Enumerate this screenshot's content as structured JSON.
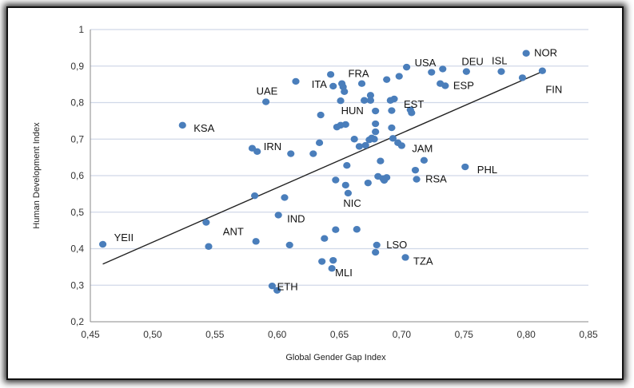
{
  "chart_data": {
    "type": "scatter",
    "title": "",
    "xlabel": "Global Gender Gap Index",
    "ylabel": "Human Development Index",
    "xlim": [
      0.45,
      0.85
    ],
    "ylim": [
      0.2,
      1.0
    ],
    "x_ticks": [
      0.45,
      0.5,
      0.55,
      0.6,
      0.65,
      0.7,
      0.75,
      0.8,
      0.85
    ],
    "x_tick_labels": [
      "0,45",
      "0,50",
      "0,55",
      "0,60",
      "0,65",
      "0,70",
      "0,75",
      "0,80",
      "0,85"
    ],
    "y_ticks": [
      0.2,
      0.3,
      0.4,
      0.5,
      0.6,
      0.7,
      0.8,
      0.9,
      1.0
    ],
    "y_tick_labels": [
      "0,2",
      "0,3",
      "0,4",
      "0,5",
      "0,6",
      "0,7",
      "0,8",
      "0,9",
      "1"
    ],
    "grid": "horizontal",
    "point_color": "#4a7ebb",
    "trendline": {
      "x": [
        0.46,
        0.815
      ],
      "y": [
        0.358,
        0.888
      ],
      "color": "#222222"
    },
    "points": [
      {
        "x": 0.46,
        "y": 0.412,
        "label": "YEII"
      },
      {
        "x": 0.524,
        "y": 0.738,
        "label": "KSA"
      },
      {
        "x": 0.543,
        "y": 0.472,
        "label": ""
      },
      {
        "x": 0.545,
        "y": 0.406,
        "label": ""
      },
      {
        "x": 0.58,
        "y": 0.675,
        "label": ""
      },
      {
        "x": 0.582,
        "y": 0.545,
        "label": ""
      },
      {
        "x": 0.583,
        "y": 0.42,
        "label": ""
      },
      {
        "x": 0.584,
        "y": 0.666,
        "label": "IRN"
      },
      {
        "x": 0.591,
        "y": 0.802,
        "label": "UAE"
      },
      {
        "x": 0.596,
        "y": 0.298,
        "label": ""
      },
      {
        "x": 0.6,
        "y": 0.286,
        "label": "ETH"
      },
      {
        "x": 0.601,
        "y": 0.492,
        "label": "IND"
      },
      {
        "x": 0.606,
        "y": 0.54,
        "label": ""
      },
      {
        "x": 0.61,
        "y": 0.41,
        "label": ""
      },
      {
        "x": 0.611,
        "y": 0.66,
        "label": ""
      },
      {
        "x": 0.615,
        "y": 0.858,
        "label": ""
      },
      {
        "x": 0.629,
        "y": 0.66,
        "label": ""
      },
      {
        "x": 0.634,
        "y": 0.69,
        "label": ""
      },
      {
        "x": 0.635,
        "y": 0.766,
        "label": ""
      },
      {
        "x": 0.636,
        "y": 0.365,
        "label": ""
      },
      {
        "x": 0.638,
        "y": 0.428,
        "label": "ANT"
      },
      {
        "x": 0.643,
        "y": 0.877,
        "label": ""
      },
      {
        "x": 0.644,
        "y": 0.346,
        "label": "MLI"
      },
      {
        "x": 0.645,
        "y": 0.368,
        "label": ""
      },
      {
        "x": 0.645,
        "y": 0.845,
        "label": "ITA"
      },
      {
        "x": 0.647,
        "y": 0.588,
        "label": ""
      },
      {
        "x": 0.647,
        "y": 0.452,
        "label": ""
      },
      {
        "x": 0.648,
        "y": 0.733,
        "label": ""
      },
      {
        "x": 0.651,
        "y": 0.805,
        "label": ""
      },
      {
        "x": 0.651,
        "y": 0.738,
        "label": ""
      },
      {
        "x": 0.652,
        "y": 0.852,
        "label": ""
      },
      {
        "x": 0.653,
        "y": 0.843,
        "label": ""
      },
      {
        "x": 0.654,
        "y": 0.83,
        "label": ""
      },
      {
        "x": 0.655,
        "y": 0.74,
        "label": ""
      },
      {
        "x": 0.655,
        "y": 0.574,
        "label": ""
      },
      {
        "x": 0.656,
        "y": 0.628,
        "label": ""
      },
      {
        "x": 0.657,
        "y": 0.552,
        "label": "NIC"
      },
      {
        "x": 0.662,
        "y": 0.7,
        "label": ""
      },
      {
        "x": 0.664,
        "y": 0.453,
        "label": ""
      },
      {
        "x": 0.666,
        "y": 0.68,
        "label": ""
      },
      {
        "x": 0.668,
        "y": 0.852,
        "label": "FRA"
      },
      {
        "x": 0.67,
        "y": 0.806,
        "label": ""
      },
      {
        "x": 0.671,
        "y": 0.683,
        "label": ""
      },
      {
        "x": 0.673,
        "y": 0.58,
        "label": ""
      },
      {
        "x": 0.674,
        "y": 0.698,
        "label": ""
      },
      {
        "x": 0.675,
        "y": 0.82,
        "label": ""
      },
      {
        "x": 0.675,
        "y": 0.806,
        "label": ""
      },
      {
        "x": 0.676,
        "y": 0.703,
        "label": ""
      },
      {
        "x": 0.678,
        "y": 0.7,
        "label": ""
      },
      {
        "x": 0.679,
        "y": 0.742,
        "label": ""
      },
      {
        "x": 0.679,
        "y": 0.72,
        "label": ""
      },
      {
        "x": 0.679,
        "y": 0.777,
        "label": "HUN"
      },
      {
        "x": 0.679,
        "y": 0.39,
        "label": ""
      },
      {
        "x": 0.68,
        "y": 0.41,
        "label": "LSO"
      },
      {
        "x": 0.681,
        "y": 0.598,
        "label": ""
      },
      {
        "x": 0.683,
        "y": 0.64,
        "label": ""
      },
      {
        "x": 0.685,
        "y": 0.592,
        "label": ""
      },
      {
        "x": 0.686,
        "y": 0.587,
        "label": ""
      },
      {
        "x": 0.688,
        "y": 0.595,
        "label": ""
      },
      {
        "x": 0.688,
        "y": 0.863,
        "label": ""
      },
      {
        "x": 0.691,
        "y": 0.806,
        "label": ""
      },
      {
        "x": 0.692,
        "y": 0.778,
        "label": ""
      },
      {
        "x": 0.692,
        "y": 0.731,
        "label": ""
      },
      {
        "x": 0.693,
        "y": 0.702,
        "label": ""
      },
      {
        "x": 0.694,
        "y": 0.81,
        "label": "EST"
      },
      {
        "x": 0.697,
        "y": 0.69,
        "label": ""
      },
      {
        "x": 0.698,
        "y": 0.872,
        "label": ""
      },
      {
        "x": 0.7,
        "y": 0.682,
        "label": "JAM"
      },
      {
        "x": 0.703,
        "y": 0.376,
        "label": "TZA"
      },
      {
        "x": 0.704,
        "y": 0.897,
        "label": "USA"
      },
      {
        "x": 0.707,
        "y": 0.78,
        "label": ""
      },
      {
        "x": 0.708,
        "y": 0.772,
        "label": ""
      },
      {
        "x": 0.711,
        "y": 0.615,
        "label": ""
      },
      {
        "x": 0.712,
        "y": 0.59,
        "label": "RSA"
      },
      {
        "x": 0.718,
        "y": 0.642,
        "label": ""
      },
      {
        "x": 0.724,
        "y": 0.883,
        "label": ""
      },
      {
        "x": 0.731,
        "y": 0.852,
        "label": ""
      },
      {
        "x": 0.733,
        "y": 0.892,
        "label": ""
      },
      {
        "x": 0.735,
        "y": 0.846,
        "label": "ESP"
      },
      {
        "x": 0.751,
        "y": 0.624,
        "label": "PHL"
      },
      {
        "x": 0.752,
        "y": 0.885,
        "label": "DEU"
      },
      {
        "x": 0.78,
        "y": 0.885,
        "label": "ISL"
      },
      {
        "x": 0.797,
        "y": 0.868,
        "label": ""
      },
      {
        "x": 0.8,
        "y": 0.935,
        "label": "NOR"
      },
      {
        "x": 0.813,
        "y": 0.887,
        "label": "FIN"
      }
    ]
  }
}
